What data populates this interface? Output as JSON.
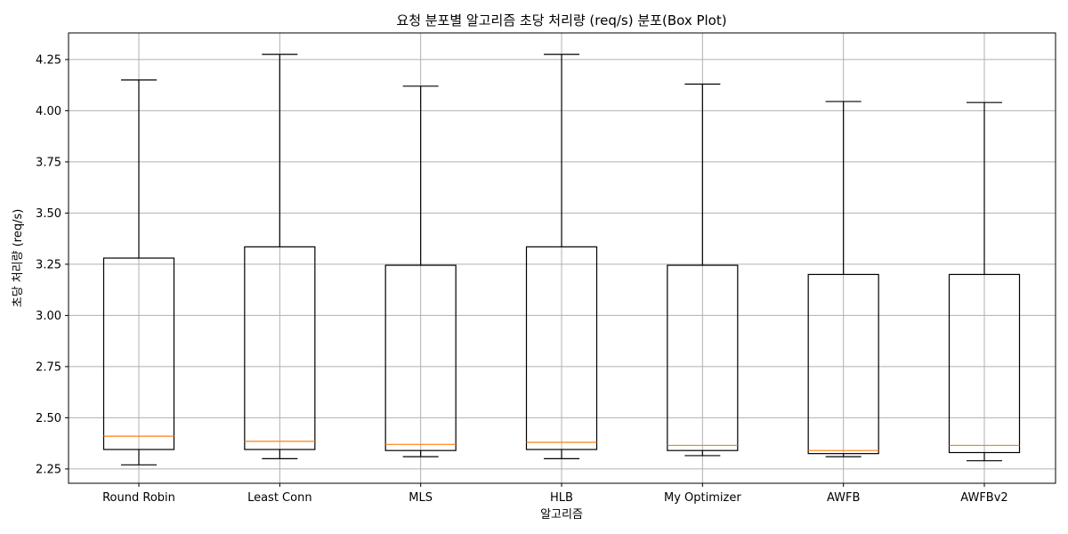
{
  "chart_data": {
    "type": "box",
    "title": "요청 분포별 알고리즘 초당 처리량 (req/s) 분포(Box Plot)",
    "xlabel": "알고리즘",
    "ylabel": "초당 처리량 (req/s)",
    "ylim": [
      2.18,
      4.38
    ],
    "yticks": [
      2.25,
      2.5,
      2.75,
      3.0,
      3.25,
      3.5,
      3.75,
      4.0,
      4.25
    ],
    "ytick_labels": [
      "2.25",
      "2.50",
      "2.75",
      "3.00",
      "3.25",
      "3.50",
      "3.75",
      "4.00",
      "4.25"
    ],
    "grid": true,
    "colors": {
      "box": "#000000",
      "median": "#ff7f0e",
      "grid": "#b0b0b0"
    },
    "categories": [
      "Round Robin",
      "Least Conn",
      "MLS",
      "HLB",
      "My Optimizer",
      "AWFB",
      "AWFBv2"
    ],
    "boxes": [
      {
        "name": "Round Robin",
        "whisker_low": 2.27,
        "q1": 2.345,
        "median": 2.41,
        "q3": 3.28,
        "whisker_high": 4.15
      },
      {
        "name": "Least Conn",
        "whisker_low": 2.3,
        "q1": 2.345,
        "median": 2.385,
        "q3": 3.335,
        "whisker_high": 4.275
      },
      {
        "name": "MLS",
        "whisker_low": 2.31,
        "q1": 2.34,
        "median": 2.37,
        "q3": 3.245,
        "whisker_high": 4.12
      },
      {
        "name": "HLB",
        "whisker_low": 2.3,
        "q1": 2.345,
        "median": 2.38,
        "q3": 3.335,
        "whisker_high": 4.275
      },
      {
        "name": "My Optimizer",
        "whisker_low": 2.315,
        "q1": 2.34,
        "median": 2.365,
        "q3": 3.245,
        "whisker_high": 4.13
      },
      {
        "name": "AWFB",
        "whisker_low": 2.31,
        "q1": 2.325,
        "median": 2.34,
        "q3": 3.2,
        "whisker_high": 4.045
      },
      {
        "name": "AWFBv2",
        "whisker_low": 2.29,
        "q1": 2.33,
        "median": 2.365,
        "q3": 3.2,
        "whisker_high": 4.04
      }
    ]
  }
}
